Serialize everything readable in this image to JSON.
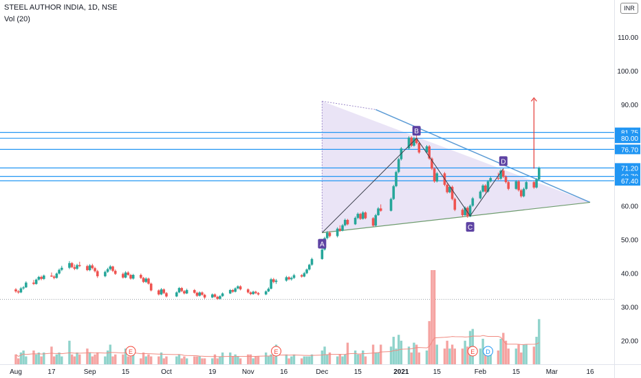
{
  "header": {
    "symbol": "STEEL AUTHOR INDIA, 1D, NSE",
    "indicator": "Vol (20)",
    "currency": "INR"
  },
  "colors": {
    "up": "#26a69a",
    "down": "#ef5350",
    "vol_up": "#8fd3cb",
    "vol_down": "#f5a3a1",
    "level_line": "#2196f3",
    "triangle_fill": "#d9cdee",
    "triangle_line": "#5b9bd5",
    "pattern_label": "#5e43a3",
    "target_arrow": "#e53935",
    "vol_ma": "#f08a80"
  },
  "chart_data": {
    "type": "candlestick",
    "title": "STEEL AUTHOR INDIA, 1D, NSE",
    "y_axis": {
      "ylim": [
        13,
        121
      ],
      "ticks": [
        20,
        30,
        40,
        50,
        60,
        70,
        80,
        90,
        100,
        110
      ]
    },
    "x_axis": {
      "ticks": [
        {
          "label": "Aug",
          "date": "2020-08-03"
        },
        {
          "label": "17",
          "date": "2020-08-17"
        },
        {
          "label": "Sep",
          "date": "2020-09-01"
        },
        {
          "label": "15",
          "date": "2020-09-15"
        },
        {
          "label": "Oct",
          "date": "2020-10-01"
        },
        {
          "label": "19",
          "date": "2020-10-19"
        },
        {
          "label": "Nov",
          "date": "2020-11-02"
        },
        {
          "label": "16",
          "date": "2020-11-16"
        },
        {
          "label": "Dec",
          "date": "2020-12-01"
        },
        {
          "label": "15",
          "date": "2020-12-15"
        },
        {
          "label": "2021",
          "date": "2021-01-01",
          "bold": true
        },
        {
          "label": "15",
          "date": "2021-01-15"
        },
        {
          "label": "Feb",
          "date": "2021-02-01"
        },
        {
          "label": "15",
          "date": "2021-02-15"
        },
        {
          "label": "Mar",
          "date": "2021-03-01"
        },
        {
          "label": "16",
          "date": "2021-03-16"
        }
      ]
    },
    "key_levels": [
      {
        "value": 81.75,
        "label": "81.75"
      },
      {
        "value": 80.0,
        "label": "80.00"
      },
      {
        "value": 76.7,
        "label": "76.70"
      },
      {
        "value": 71.2,
        "label": "71.20"
      },
      {
        "value": 68.7,
        "label": "68.70"
      },
      {
        "value": 67.4,
        "label": "67.40"
      }
    ],
    "triangle": {
      "apex": {
        "date": "2021-03-16",
        "price": 61
      },
      "upper_start": {
        "date": "2020-12-01",
        "price": 91
      },
      "lower_start": {
        "date": "2020-12-01",
        "price": 52
      }
    },
    "pattern_points": [
      {
        "label": "A",
        "date": "2020-12-01",
        "price": 52
      },
      {
        "label": "B",
        "date": "2021-01-07",
        "price": 80
      },
      {
        "label": "C",
        "date": "2021-01-28",
        "price": 57
      },
      {
        "label": "D",
        "date": "2021-02-10",
        "price": 71
      }
    ],
    "target_arrow": {
      "date": "2021-02-22",
      "from": 71,
      "to": 92
    },
    "volume_ma_label": "Vol MA 20",
    "events": [
      {
        "type": "E",
        "date": "2020-09-17"
      },
      {
        "type": "E",
        "date": "2020-11-13"
      },
      {
        "type": "E",
        "date": "2021-01-29"
      },
      {
        "type": "D",
        "date": "2021-02-04"
      }
    ],
    "ohlc": [
      [
        "2020-08-03",
        35.2,
        35.6,
        34.2,
        34.6
      ],
      [
        "2020-08-04",
        34.6,
        35.0,
        33.9,
        34.3
      ],
      [
        "2020-08-05",
        34.3,
        35.9,
        34.1,
        35.5
      ],
      [
        "2020-08-06",
        35.5,
        36.2,
        35.1,
        35.8
      ],
      [
        "2020-08-07",
        35.8,
        37.6,
        35.6,
        37.2
      ],
      [
        "2020-08-10",
        37.2,
        38.0,
        36.5,
        36.8
      ],
      [
        "2020-08-11",
        36.8,
        38.4,
        36.6,
        38.1
      ],
      [
        "2020-08-12",
        38.1,
        39.2,
        37.8,
        38.9
      ],
      [
        "2020-08-13",
        38.9,
        39.3,
        37.9,
        38.3
      ],
      [
        "2020-08-14",
        38.3,
        39.6,
        38.0,
        39.3
      ],
      [
        "2020-08-17",
        39.3,
        40.2,
        38.9,
        39.0
      ],
      [
        "2020-08-18",
        39.0,
        39.4,
        38.2,
        38.6
      ],
      [
        "2020-08-19",
        38.6,
        40.2,
        38.4,
        39.9
      ],
      [
        "2020-08-20",
        39.9,
        41.4,
        39.6,
        41.0
      ],
      [
        "2020-08-21",
        41.0,
        42.2,
        40.6,
        41.6
      ],
      [
        "2020-08-24",
        41.6,
        43.6,
        41.2,
        43.0
      ],
      [
        "2020-08-25",
        43.0,
        43.3,
        41.5,
        41.8
      ],
      [
        "2020-08-26",
        41.8,
        42.6,
        40.9,
        41.3
      ],
      [
        "2020-08-27",
        41.3,
        42.8,
        41.0,
        42.4
      ],
      [
        "2020-08-28",
        42.4,
        43.4,
        41.8,
        42.1
      ],
      [
        "2020-08-31",
        42.1,
        42.5,
        40.6,
        40.9
      ],
      [
        "2020-09-01",
        40.9,
        42.7,
        40.6,
        42.3
      ],
      [
        "2020-09-02",
        42.3,
        42.8,
        41.1,
        41.5
      ],
      [
        "2020-09-03",
        41.5,
        41.9,
        40.2,
        40.6
      ],
      [
        "2020-09-04",
        40.6,
        41.0,
        38.6,
        39.1
      ],
      [
        "2020-09-07",
        39.1,
        40.8,
        38.8,
        40.4
      ],
      [
        "2020-09-08",
        40.4,
        41.6,
        40.1,
        41.2
      ],
      [
        "2020-09-09",
        41.2,
        42.4,
        40.8,
        42.0
      ],
      [
        "2020-09-10",
        42.0,
        42.2,
        40.3,
        40.7
      ],
      [
        "2020-09-11",
        40.7,
        41.1,
        39.5,
        39.8
      ],
      [
        "2020-09-14",
        39.8,
        40.2,
        38.4,
        38.7
      ],
      [
        "2020-09-15",
        38.7,
        40.6,
        38.5,
        40.2
      ],
      [
        "2020-09-16",
        40.2,
        40.6,
        39.2,
        39.5
      ],
      [
        "2020-09-17",
        39.5,
        39.8,
        38.1,
        38.4
      ],
      [
        "2020-09-18",
        38.4,
        39.8,
        38.1,
        39.5
      ],
      [
        "2020-09-21",
        39.5,
        39.9,
        38.3,
        38.6
      ],
      [
        "2020-09-22",
        38.6,
        38.9,
        37.1,
        37.4
      ],
      [
        "2020-09-23",
        37.4,
        38.8,
        37.1,
        38.4
      ],
      [
        "2020-09-24",
        38.4,
        38.7,
        36.6,
        36.9
      ],
      [
        "2020-09-25",
        36.9,
        37.2,
        34.6,
        34.9
      ],
      [
        "2020-09-28",
        34.9,
        35.2,
        33.4,
        33.7
      ],
      [
        "2020-09-29",
        33.7,
        35.6,
        33.5,
        35.2
      ],
      [
        "2020-09-30",
        35.2,
        35.5,
        33.8,
        34.1
      ],
      [
        "2020-10-01",
        34.1,
        34.4,
        32.8,
        33.1
      ],
      [
        "2020-10-05",
        33.1,
        34.6,
        32.9,
        34.3
      ],
      [
        "2020-10-06",
        34.3,
        35.9,
        34.1,
        35.6
      ],
      [
        "2020-10-07",
        35.6,
        35.9,
        34.4,
        34.7
      ],
      [
        "2020-10-08",
        34.7,
        35.0,
        33.7,
        34.0
      ],
      [
        "2020-10-09",
        34.0,
        35.4,
        33.8,
        35.0
      ],
      [
        "2020-10-12",
        35.0,
        35.3,
        33.9,
        34.2
      ],
      [
        "2020-10-13",
        34.2,
        34.5,
        33.0,
        33.3
      ],
      [
        "2020-10-14",
        33.3,
        34.6,
        33.1,
        34.3
      ],
      [
        "2020-10-15",
        34.3,
        34.6,
        33.3,
        33.6
      ],
      [
        "2020-10-16",
        33.6,
        33.9,
        32.4,
        32.8
      ],
      [
        "2020-10-19",
        32.8,
        34.0,
        32.6,
        33.7
      ],
      [
        "2020-10-20",
        33.7,
        34.0,
        32.7,
        33.0
      ],
      [
        "2020-10-21",
        33.0,
        33.3,
        32.1,
        32.4
      ],
      [
        "2020-10-22",
        32.4,
        33.5,
        32.2,
        33.2
      ],
      [
        "2020-10-23",
        33.2,
        34.3,
        33.0,
        34.0
      ],
      [
        "2020-10-26",
        34.0,
        35.3,
        33.8,
        35.0
      ],
      [
        "2020-10-27",
        35.0,
        35.3,
        34.2,
        34.5
      ],
      [
        "2020-10-28",
        34.5,
        35.8,
        34.3,
        35.5
      ],
      [
        "2020-10-29",
        35.5,
        36.4,
        35.2,
        36.1
      ],
      [
        "2020-10-30",
        36.1,
        36.4,
        34.9,
        35.2
      ],
      [
        "2020-11-02",
        35.2,
        35.5,
        34.0,
        34.3
      ],
      [
        "2020-11-03",
        34.3,
        34.6,
        33.5,
        33.8
      ],
      [
        "2020-11-04",
        33.8,
        34.8,
        33.6,
        34.5
      ],
      [
        "2020-11-05",
        34.5,
        34.8,
        33.8,
        34.1
      ],
      [
        "2020-11-06",
        34.1,
        34.4,
        33.4,
        33.7
      ],
      [
        "2020-11-09",
        33.7,
        34.9,
        33.5,
        34.6
      ],
      [
        "2020-11-10",
        34.6,
        35.8,
        34.4,
        35.4
      ],
      [
        "2020-11-11",
        35.4,
        38.6,
        35.2,
        38.2
      ],
      [
        "2020-11-12",
        38.2,
        38.6,
        37.0,
        37.4
      ],
      [
        "2020-11-13",
        37.4,
        38.3,
        36.8,
        37.8
      ],
      [
        "2020-11-17",
        37.8,
        39.2,
        37.5,
        38.8
      ],
      [
        "2020-11-18",
        38.8,
        39.1,
        37.9,
        38.2
      ],
      [
        "2020-11-19",
        38.2,
        39.0,
        37.8,
        38.6
      ],
      [
        "2020-11-20",
        38.6,
        39.8,
        38.3,
        39.4
      ],
      [
        "2020-11-23",
        39.4,
        39.7,
        38.7,
        39.0
      ],
      [
        "2020-11-24",
        39.0,
        40.4,
        38.8,
        40.0
      ],
      [
        "2020-11-25",
        40.0,
        41.4,
        39.7,
        41.1
      ],
      [
        "2020-11-26",
        41.1,
        42.8,
        40.8,
        42.5
      ],
      [
        "2020-11-27",
        42.5,
        44.6,
        42.2,
        44.2
      ],
      [
        "2020-12-01",
        44.2,
        47.4,
        44.0,
        47.0
      ],
      [
        "2020-12-02",
        47.0,
        50.8,
        46.7,
        50.4
      ],
      [
        "2020-12-03",
        50.4,
        52.5,
        50.0,
        52.0
      ],
      [
        "2020-12-04",
        52.0,
        52.4,
        50.6,
        51.0
      ],
      [
        "2020-12-07",
        51.0,
        53.6,
        50.6,
        53.2
      ],
      [
        "2020-12-08",
        53.2,
        54.2,
        52.3,
        52.6
      ],
      [
        "2020-12-09",
        52.6,
        54.6,
        52.4,
        54.2
      ],
      [
        "2020-12-10",
        54.2,
        56.2,
        53.9,
        55.8
      ],
      [
        "2020-12-11",
        55.8,
        56.1,
        54.2,
        54.5
      ],
      [
        "2020-12-14",
        54.5,
        56.8,
        54.3,
        56.4
      ],
      [
        "2020-12-15",
        56.4,
        58.0,
        56.0,
        57.6
      ],
      [
        "2020-12-16",
        57.6,
        57.9,
        55.8,
        56.1
      ],
      [
        "2020-12-17",
        56.1,
        58.4,
        55.9,
        58.0
      ],
      [
        "2020-12-18",
        58.0,
        58.3,
        56.0,
        56.3
      ],
      [
        "2020-12-21",
        56.3,
        56.6,
        53.8,
        54.1
      ],
      [
        "2020-12-22",
        54.1,
        57.6,
        53.9,
        57.2
      ],
      [
        "2020-12-23",
        57.2,
        59.6,
        57.0,
        59.2
      ],
      [
        "2020-12-24",
        59.2,
        60.4,
        58.2,
        58.5
      ],
      [
        "2020-12-28",
        58.5,
        62.4,
        58.3,
        62.0
      ],
      [
        "2020-12-29",
        62.0,
        66.2,
        61.7,
        65.8
      ],
      [
        "2020-12-30",
        65.8,
        70.4,
        65.5,
        70.0
      ],
      [
        "2020-12-31",
        70.0,
        74.2,
        69.6,
        73.8
      ],
      [
        "2021-01-01",
        73.8,
        77.4,
        73.4,
        77.0
      ],
      [
        "2021-01-04",
        77.0,
        80.6,
        76.6,
        80.2
      ],
      [
        "2021-01-05",
        80.2,
        80.6,
        77.4,
        77.8
      ],
      [
        "2021-01-06",
        77.8,
        80.4,
        77.5,
        80.0
      ],
      [
        "2021-01-07",
        80.0,
        81.2,
        78.2,
        78.6
      ],
      [
        "2021-01-08",
        78.6,
        79.0,
        75.4,
        75.8
      ],
      [
        "2021-01-11",
        75.8,
        78.0,
        75.5,
        77.6
      ],
      [
        "2021-01-12",
        77.6,
        78.0,
        73.6,
        74.0
      ],
      [
        "2021-01-13",
        74.0,
        74.4,
        70.6,
        71.0
      ],
      [
        "2021-01-14",
        71.0,
        71.4,
        66.8,
        67.2
      ],
      [
        "2021-01-15",
        67.2,
        70.0,
        66.9,
        69.6
      ],
      [
        "2021-01-18",
        69.6,
        70.0,
        65.8,
        66.2
      ],
      [
        "2021-01-19",
        66.2,
        66.6,
        63.6,
        64.0
      ],
      [
        "2021-01-20",
        64.0,
        66.0,
        63.7,
        65.6
      ],
      [
        "2021-01-21",
        65.6,
        66.0,
        61.6,
        62.0
      ],
      [
        "2021-01-22",
        62.0,
        62.4,
        58.4,
        58.8
      ],
      [
        "2021-01-25",
        58.8,
        59.2,
        56.6,
        57.2
      ],
      [
        "2021-01-26",
        57.2,
        59.8,
        57.0,
        59.4
      ],
      [
        "2021-01-27",
        59.4,
        59.8,
        56.4,
        56.8
      ],
      [
        "2021-01-28",
        56.8,
        60.4,
        56.6,
        60.0
      ],
      [
        "2021-01-29",
        60.0,
        62.6,
        59.7,
        62.2
      ],
      [
        "2021-02-01",
        62.2,
        64.6,
        61.9,
        64.2
      ],
      [
        "2021-02-02",
        64.2,
        66.4,
        63.9,
        66.0
      ],
      [
        "2021-02-03",
        66.0,
        66.4,
        63.8,
        64.2
      ],
      [
        "2021-02-04",
        64.2,
        67.6,
        63.9,
        67.2
      ],
      [
        "2021-02-05",
        67.2,
        68.6,
        66.9,
        68.2
      ],
      [
        "2021-02-08",
        68.2,
        69.8,
        67.6,
        68.0
      ],
      [
        "2021-02-09",
        68.0,
        70.8,
        67.7,
        70.4
      ],
      [
        "2021-02-10",
        70.4,
        71.0,
        68.2,
        68.6
      ],
      [
        "2021-02-11",
        68.6,
        69.0,
        66.6,
        67.0
      ],
      [
        "2021-02-12",
        67.0,
        67.4,
        64.6,
        65.0
      ],
      [
        "2021-02-15",
        65.0,
        67.6,
        64.7,
        67.2
      ],
      [
        "2021-02-16",
        67.2,
        67.6,
        64.2,
        64.6
      ],
      [
        "2021-02-17",
        64.6,
        65.0,
        62.4,
        62.8
      ],
      [
        "2021-02-18",
        62.8,
        65.4,
        62.5,
        65.0
      ],
      [
        "2021-02-19",
        65.0,
        67.4,
        64.7,
        67.0
      ],
      [
        "2021-02-22",
        67.0,
        67.4,
        65.0,
        65.4
      ],
      [
        "2021-02-23",
        65.4,
        68.2,
        65.1,
        67.8
      ],
      [
        "2021-02-24",
        67.8,
        71.6,
        67.4,
        71.2
      ]
    ],
    "volume": [
      5,
      3,
      6,
      7,
      4,
      7,
      5,
      6,
      4,
      6,
      9,
      4,
      5,
      6,
      4,
      12,
      5,
      4,
      6,
      5,
      8,
      6,
      4,
      5,
      6,
      4,
      7,
      10,
      4,
      5,
      5,
      8,
      4,
      4,
      5,
      3,
      6,
      4,
      5,
      4,
      4,
      6,
      3,
      4,
      4,
      5,
      3,
      4,
      3,
      4,
      4,
      4,
      3,
      3,
      3,
      5,
      3,
      4,
      6,
      6,
      4,
      5,
      4,
      3,
      5,
      5,
      3,
      4,
      4,
      6,
      4,
      5,
      4,
      10,
      5,
      3,
      4,
      5,
      3,
      4,
      4,
      4,
      5,
      7,
      9,
      5,
      6,
      4,
      5,
      4,
      5,
      11,
      7,
      5,
      5,
      7,
      4,
      10,
      6,
      6,
      10,
      9,
      14,
      8,
      15,
      12,
      9,
      6,
      11,
      10,
      6,
      7,
      22,
      48,
      48,
      10,
      8,
      12,
      8,
      10,
      8,
      8,
      12,
      9,
      17,
      18,
      8,
      13,
      6,
      6,
      6,
      7,
      13,
      16,
      12,
      8,
      8,
      10,
      6,
      10,
      10,
      9,
      14,
      23
    ]
  }
}
